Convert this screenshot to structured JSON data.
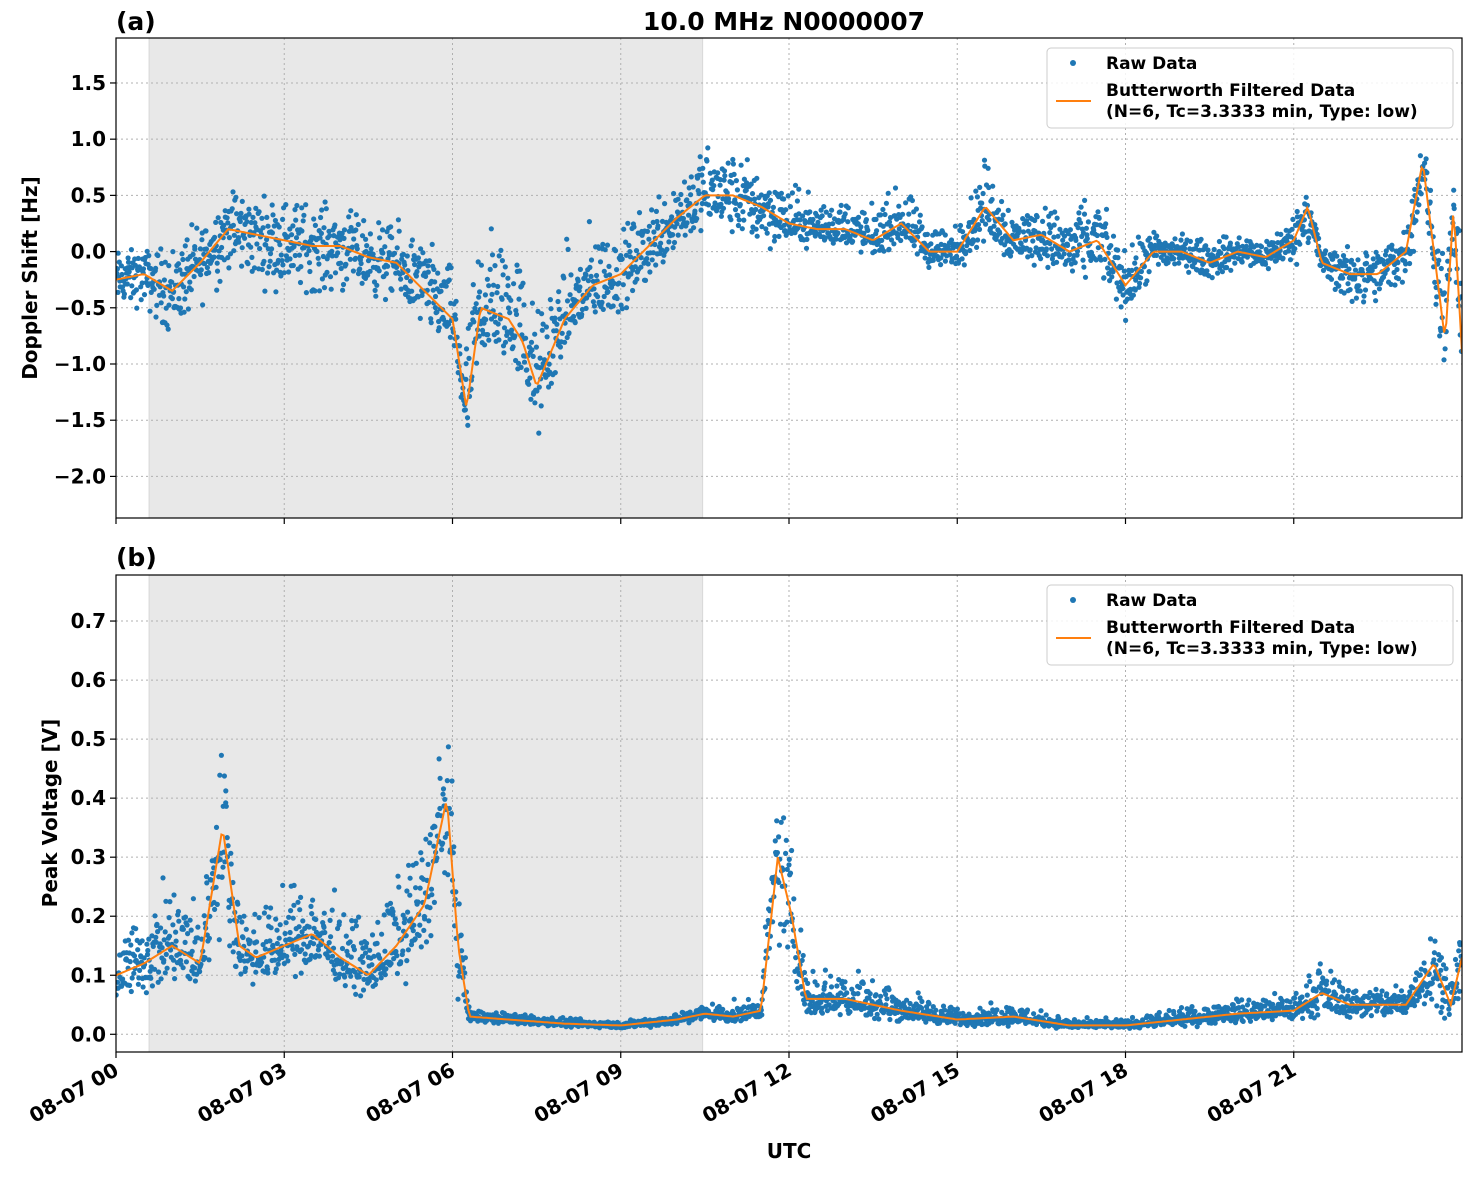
{
  "chart_data": [
    {
      "type": "scatter",
      "panel_label": "(a)",
      "title": "10.0 MHz N0000007",
      "xlabel": "",
      "ylabel": "Doppler Shift [Hz]",
      "xlim_hours_utc": [
        0,
        24
      ],
      "x_tick_labels": [
        "08-07 00",
        "08-07 03",
        "08-07 06",
        "08-07 09",
        "08-07 12",
        "08-07 15",
        "08-07 18",
        "08-07 21"
      ],
      "x_tick_hours": [
        0,
        3,
        6,
        9,
        12,
        15,
        18,
        21
      ],
      "ylim": [
        -2.37,
        1.9
      ],
      "y_ticks": [
        -2.0,
        -1.5,
        -1.0,
        -0.5,
        0.0,
        0.5,
        1.0,
        1.5
      ],
      "y_tick_labels": [
        "−2.0",
        "−1.5",
        "−1.0",
        "−0.5",
        "0.0",
        "0.5",
        "1.0",
        "1.5"
      ],
      "grid": true,
      "shaded_interval_hours": [
        0.59,
        10.46
      ],
      "legend_position": "top-right",
      "legend": [
        "Raw Data",
        "Butterworth Filtered Data",
        "(N=6, Tc=3.3333 min, Type: low)"
      ],
      "series": [
        {
          "name": "Raw Data",
          "kind": "scatter-envelope",
          "x": [
            0,
            0.5,
            1,
            1.5,
            2,
            2.5,
            3,
            3.5,
            4,
            4.5,
            5,
            5.5,
            6,
            6.25,
            6.5,
            7,
            7.25,
            7.5,
            8,
            8.5,
            9,
            9.5,
            10,
            10.5,
            11,
            11.5,
            12,
            12.5,
            13,
            13.5,
            14,
            14.5,
            15,
            15.5,
            16,
            16.5,
            17,
            17.5,
            18,
            18.5,
            19,
            19.5,
            20,
            20.5,
            21,
            21.25,
            21.5,
            22,
            22.5,
            23,
            23.3,
            23.7,
            23.85,
            24
          ],
          "low": [
            -0.6,
            -0.6,
            -0.9,
            -0.6,
            -0.3,
            -0.4,
            -0.5,
            -0.5,
            -0.5,
            -0.5,
            -0.6,
            -0.8,
            -1.0,
            -2.0,
            -1.2,
            -1.1,
            -1.3,
            -1.9,
            -1.0,
            -0.8,
            -0.7,
            -0.4,
            -0.1,
            0.1,
            0.0,
            -0.1,
            0.0,
            0.0,
            0.0,
            -0.1,
            0.0,
            -0.2,
            -0.2,
            0.0,
            -0.2,
            -0.2,
            -0.4,
            -0.3,
            -0.7,
            -0.3,
            -0.2,
            -0.3,
            -0.2,
            -0.2,
            -0.2,
            0.0,
            -0.3,
            -0.6,
            -0.6,
            -0.4,
            0.3,
            -1.3,
            -0.3,
            -1.5
          ],
          "high": [
            0.1,
            0.1,
            0.2,
            0.4,
            0.75,
            0.6,
            0.6,
            0.6,
            0.5,
            0.4,
            0.35,
            0.3,
            0.0,
            -0.5,
            0.6,
            0.5,
            0.3,
            -0.3,
            0.2,
            0.4,
            0.3,
            0.6,
            0.9,
            1.1,
            1.0,
            0.9,
            0.7,
            0.6,
            0.6,
            0.5,
            0.7,
            0.4,
            0.3,
            1.0,
            0.5,
            0.5,
            0.5,
            0.6,
            0.1,
            0.3,
            0.2,
            0.2,
            0.2,
            0.2,
            0.4,
            0.7,
            0.1,
            0.1,
            0.1,
            0.3,
            1.1,
            0.0,
            0.9,
            0.0
          ]
        },
        {
          "name": "Butterworth Filtered Data",
          "kind": "line",
          "x": [
            0,
            0.5,
            1,
            1.5,
            2,
            2.5,
            3,
            3.5,
            4,
            4.5,
            5,
            5.5,
            6,
            6.25,
            6.5,
            7,
            7.25,
            7.5,
            8,
            8.5,
            9,
            9.5,
            10,
            10.5,
            11,
            11.5,
            12,
            12.5,
            13,
            13.5,
            14,
            14.5,
            15,
            15.5,
            16,
            16.5,
            17,
            17.5,
            18,
            18.5,
            19,
            19.5,
            20,
            20.5,
            21,
            21.25,
            21.5,
            22,
            22.5,
            23,
            23.3,
            23.7,
            23.85,
            24
          ],
          "y": [
            -0.25,
            -0.2,
            -0.35,
            -0.1,
            0.2,
            0.15,
            0.1,
            0.05,
            0.05,
            -0.05,
            -0.1,
            -0.35,
            -0.6,
            -1.4,
            -0.5,
            -0.6,
            -0.8,
            -1.2,
            -0.6,
            -0.3,
            -0.2,
            0.05,
            0.3,
            0.5,
            0.5,
            0.4,
            0.25,
            0.2,
            0.2,
            0.1,
            0.25,
            0.0,
            0.0,
            0.4,
            0.1,
            0.15,
            0.0,
            0.1,
            -0.3,
            0.0,
            0.0,
            -0.1,
            0.0,
            -0.05,
            0.1,
            0.4,
            -0.1,
            -0.2,
            -0.2,
            0.0,
            0.8,
            -0.8,
            0.4,
            -0.9
          ]
        }
      ]
    },
    {
      "type": "scatter",
      "panel_label": "(b)",
      "title": "",
      "xlabel": "UTC",
      "ylabel": "Peak Voltage [V]",
      "xlim_hours_utc": [
        0,
        24
      ],
      "x_tick_labels": [
        "08-07 00",
        "08-07 03",
        "08-07 06",
        "08-07 09",
        "08-07 12",
        "08-07 15",
        "08-07 18",
        "08-07 21"
      ],
      "x_tick_hours": [
        0,
        3,
        6,
        9,
        12,
        15,
        18,
        21
      ],
      "ylim": [
        -0.03,
        0.778
      ],
      "y_ticks": [
        0.0,
        0.1,
        0.2,
        0.3,
        0.4,
        0.5,
        0.6,
        0.7
      ],
      "y_tick_labels": [
        "0.0",
        "0.1",
        "0.2",
        "0.3",
        "0.4",
        "0.5",
        "0.6",
        "0.7"
      ],
      "grid": true,
      "shaded_interval_hours": [
        0.59,
        10.46
      ],
      "legend_position": "top-right",
      "legend": [
        "Raw Data",
        "Butterworth Filtered Data",
        "(N=6, Tc=3.3333 min, Type: low)"
      ],
      "series": [
        {
          "name": "Raw Data",
          "kind": "scatter-envelope",
          "x": [
            0,
            0.5,
            1,
            1.5,
            1.9,
            2.2,
            2.5,
            3,
            3.5,
            4,
            4.5,
            5,
            5.5,
            5.9,
            6.1,
            6.3,
            7,
            8,
            9,
            10,
            10.5,
            11,
            11.5,
            11.8,
            12.05,
            12.3,
            13,
            13.5,
            14,
            15,
            16,
            17,
            18,
            19,
            20,
            21,
            21.5,
            22,
            23,
            23.5,
            23.8,
            24
          ],
          "low": [
            0.04,
            0.05,
            0.05,
            0.05,
            0.15,
            0.06,
            0.07,
            0.08,
            0.09,
            0.07,
            0.05,
            0.07,
            0.1,
            0.2,
            0.05,
            0.015,
            0.015,
            0.01,
            0.008,
            0.012,
            0.02,
            0.015,
            0.02,
            0.1,
            0.08,
            0.02,
            0.02,
            0.02,
            0.015,
            0.01,
            0.01,
            0.008,
            0.008,
            0.01,
            0.015,
            0.015,
            0.02,
            0.02,
            0.02,
            0.03,
            0.02,
            0.04
          ],
          "high": [
            0.2,
            0.25,
            0.3,
            0.25,
            0.55,
            0.25,
            0.25,
            0.27,
            0.3,
            0.25,
            0.22,
            0.3,
            0.4,
            0.6,
            0.3,
            0.05,
            0.04,
            0.03,
            0.025,
            0.04,
            0.06,
            0.06,
            0.07,
            0.5,
            0.38,
            0.12,
            0.14,
            0.12,
            0.09,
            0.05,
            0.06,
            0.03,
            0.03,
            0.05,
            0.07,
            0.08,
            0.14,
            0.09,
            0.1,
            0.22,
            0.12,
            0.22
          ]
        },
        {
          "name": "Butterworth Filtered Data",
          "kind": "line",
          "x": [
            0,
            0.5,
            1,
            1.5,
            1.9,
            2.2,
            2.5,
            3,
            3.5,
            4,
            4.5,
            5,
            5.5,
            5.9,
            6.1,
            6.3,
            7,
            8,
            9,
            10,
            10.5,
            11,
            11.5,
            11.8,
            12.05,
            12.3,
            13,
            13.5,
            14,
            15,
            16,
            17,
            18,
            19,
            20,
            21,
            21.5,
            22,
            23,
            23.5,
            23.8,
            24
          ],
          "y": [
            0.1,
            0.12,
            0.15,
            0.12,
            0.35,
            0.15,
            0.13,
            0.15,
            0.17,
            0.13,
            0.1,
            0.15,
            0.22,
            0.4,
            0.15,
            0.03,
            0.025,
            0.018,
            0.015,
            0.025,
            0.035,
            0.03,
            0.04,
            0.3,
            0.2,
            0.06,
            0.06,
            0.05,
            0.04,
            0.025,
            0.03,
            0.015,
            0.015,
            0.025,
            0.035,
            0.04,
            0.07,
            0.05,
            0.05,
            0.12,
            0.05,
            0.13
          ]
        }
      ]
    }
  ],
  "colors": {
    "raw": "#1f77b4",
    "filtered": "#ff7f0e",
    "shade": "#e8e8e8",
    "grid": "#b0b0b0"
  }
}
